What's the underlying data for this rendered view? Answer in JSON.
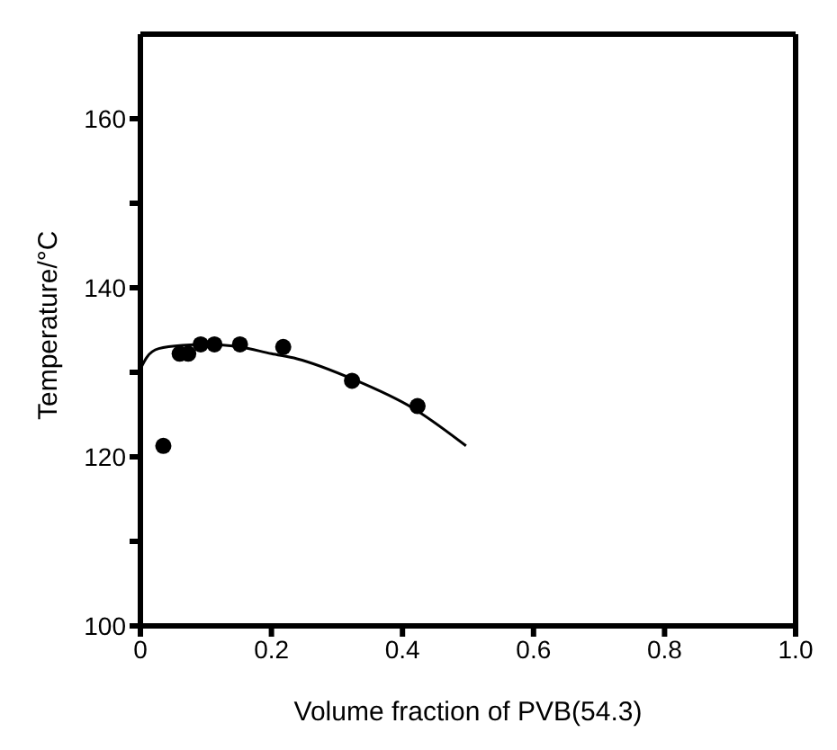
{
  "chart_data": {
    "type": "scatter",
    "xlabel": "Volume fraction of PVB(54.3)",
    "ylabel": "Temperature/°C",
    "xlim": [
      0,
      1
    ],
    "xticks": [
      0,
      0.2,
      0.4,
      0.6,
      0.8,
      {
        "value": 1,
        "label": "1.0"
      }
    ],
    "ylim": [
      100,
      170
    ],
    "yticks": [
      100,
      {
        "value": 110,
        "label": null
      },
      120,
      {
        "value": 130,
        "label": null
      },
      140,
      {
        "value": 150,
        "label": null
      },
      160
    ],
    "series": [
      {
        "color": "#000000",
        "marker": "circle",
        "x": [
          0.035,
          0.06,
          0.073,
          0.092,
          0.113,
          0.152,
          0.218,
          0.323,
          0.423
        ],
        "values": [
          121.3,
          132.2,
          132.2,
          133.3,
          133.3,
          133.3,
          133,
          129,
          126
        ]
      },
      {
        "type": "line",
        "color": "#000000",
        "marker": "none",
        "line_style": "solid",
        "x": [
          0,
          0.01,
          0.028,
          0.064,
          0.1,
          0.152,
          0.2,
          0.239,
          0.327,
          0.415,
          0.497
        ],
        "values": [
          130.4,
          131.8,
          132.8,
          133.2,
          133.3,
          133,
          132.2,
          131.6,
          129.1,
          125.8,
          121.3
        ]
      }
    ]
  }
}
